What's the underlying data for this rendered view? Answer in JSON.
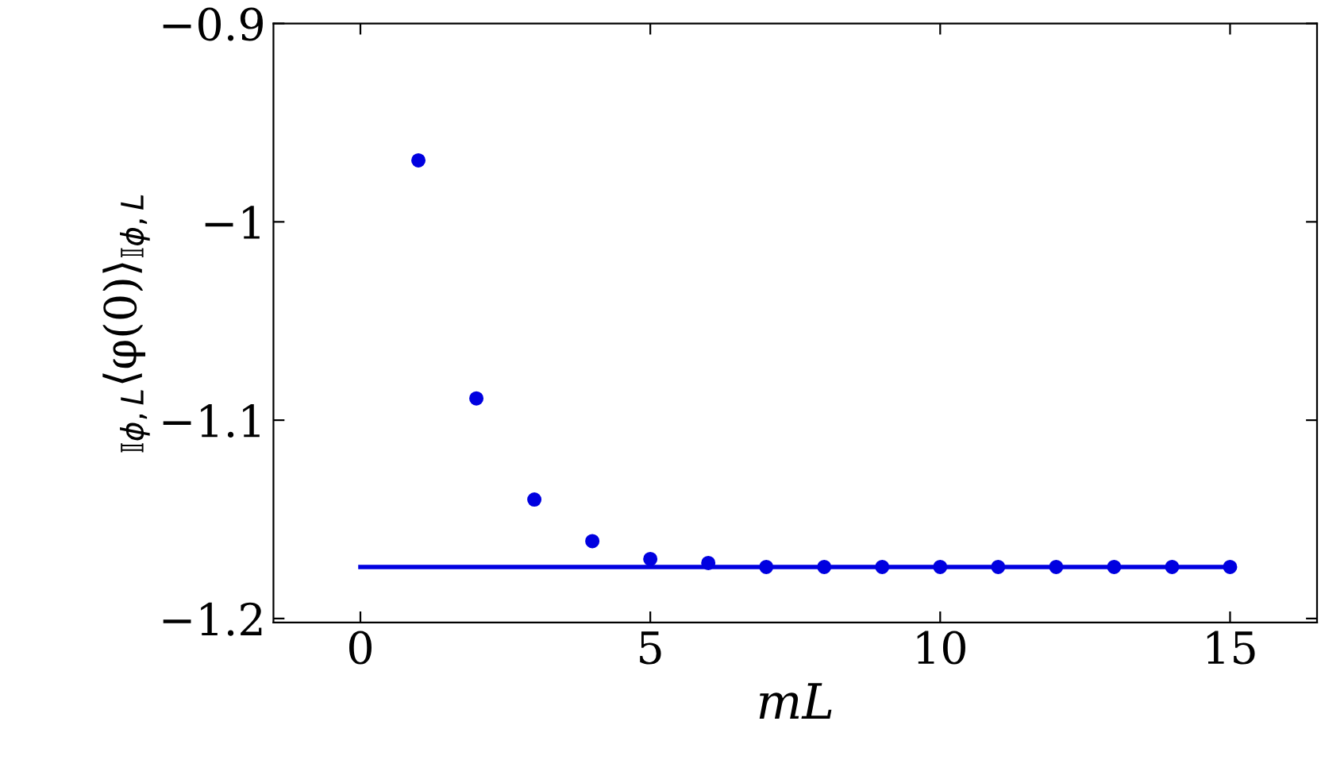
{
  "chart_data": {
    "type": "scatter",
    "xlabel": "mL",
    "ylabel": "$_{𝕀ϕ,L}$⟨φ(0)⟩$_{𝕀ϕ,L}$",
    "xlim": [
      -1.5,
      16.5
    ],
    "xticks": [
      0,
      5,
      10,
      15
    ],
    "ylim": [
      -1.202,
      -0.9
    ],
    "yticks": [
      {
        "value": -0.9,
        "label": "−0.9"
      },
      {
        "value": -1.0,
        "label": "−1"
      },
      {
        "value": -1.1,
        "label": "−1.1"
      },
      {
        "value": -1.2,
        "label": "−1.2"
      }
    ],
    "grid": false,
    "legend": false,
    "series": [
      {
        "color": "#0000e0",
        "marker": "circle",
        "x": [
          1,
          2,
          3,
          4,
          5,
          6,
          7,
          8,
          9,
          10,
          11,
          12,
          13,
          14,
          15
        ],
        "values": [
          -0.969,
          -1.089,
          -1.14,
          -1.161,
          -1.17,
          -1.172,
          -1.174,
          -1.174,
          -1.174,
          -1.174,
          -1.174,
          -1.174,
          -1.174,
          -1.174,
          -1.174
        ]
      },
      {
        "type": "line",
        "color": "#0000e0",
        "line_style": "solid",
        "marker": "none",
        "x": [
          0,
          15
        ],
        "values": [
          -1.174,
          -1.174
        ]
      }
    ]
  }
}
